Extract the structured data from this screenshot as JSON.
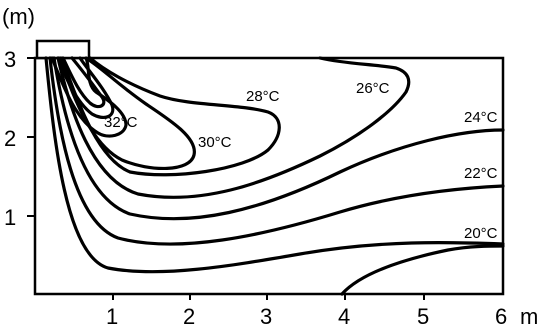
{
  "units": {
    "y": "(m)",
    "x": "m"
  },
  "x_ticks": [
    "1",
    "2",
    "3",
    "4",
    "5",
    "6"
  ],
  "y_ticks": [
    "1",
    "2",
    "3"
  ],
  "isotherms": [
    {
      "label": "32°C"
    },
    {
      "label": "30°C"
    },
    {
      "label": "28°C"
    },
    {
      "label": "26°C"
    },
    {
      "label": "24°C"
    },
    {
      "label": "22°C"
    },
    {
      "label": "20°C"
    }
  ]
}
